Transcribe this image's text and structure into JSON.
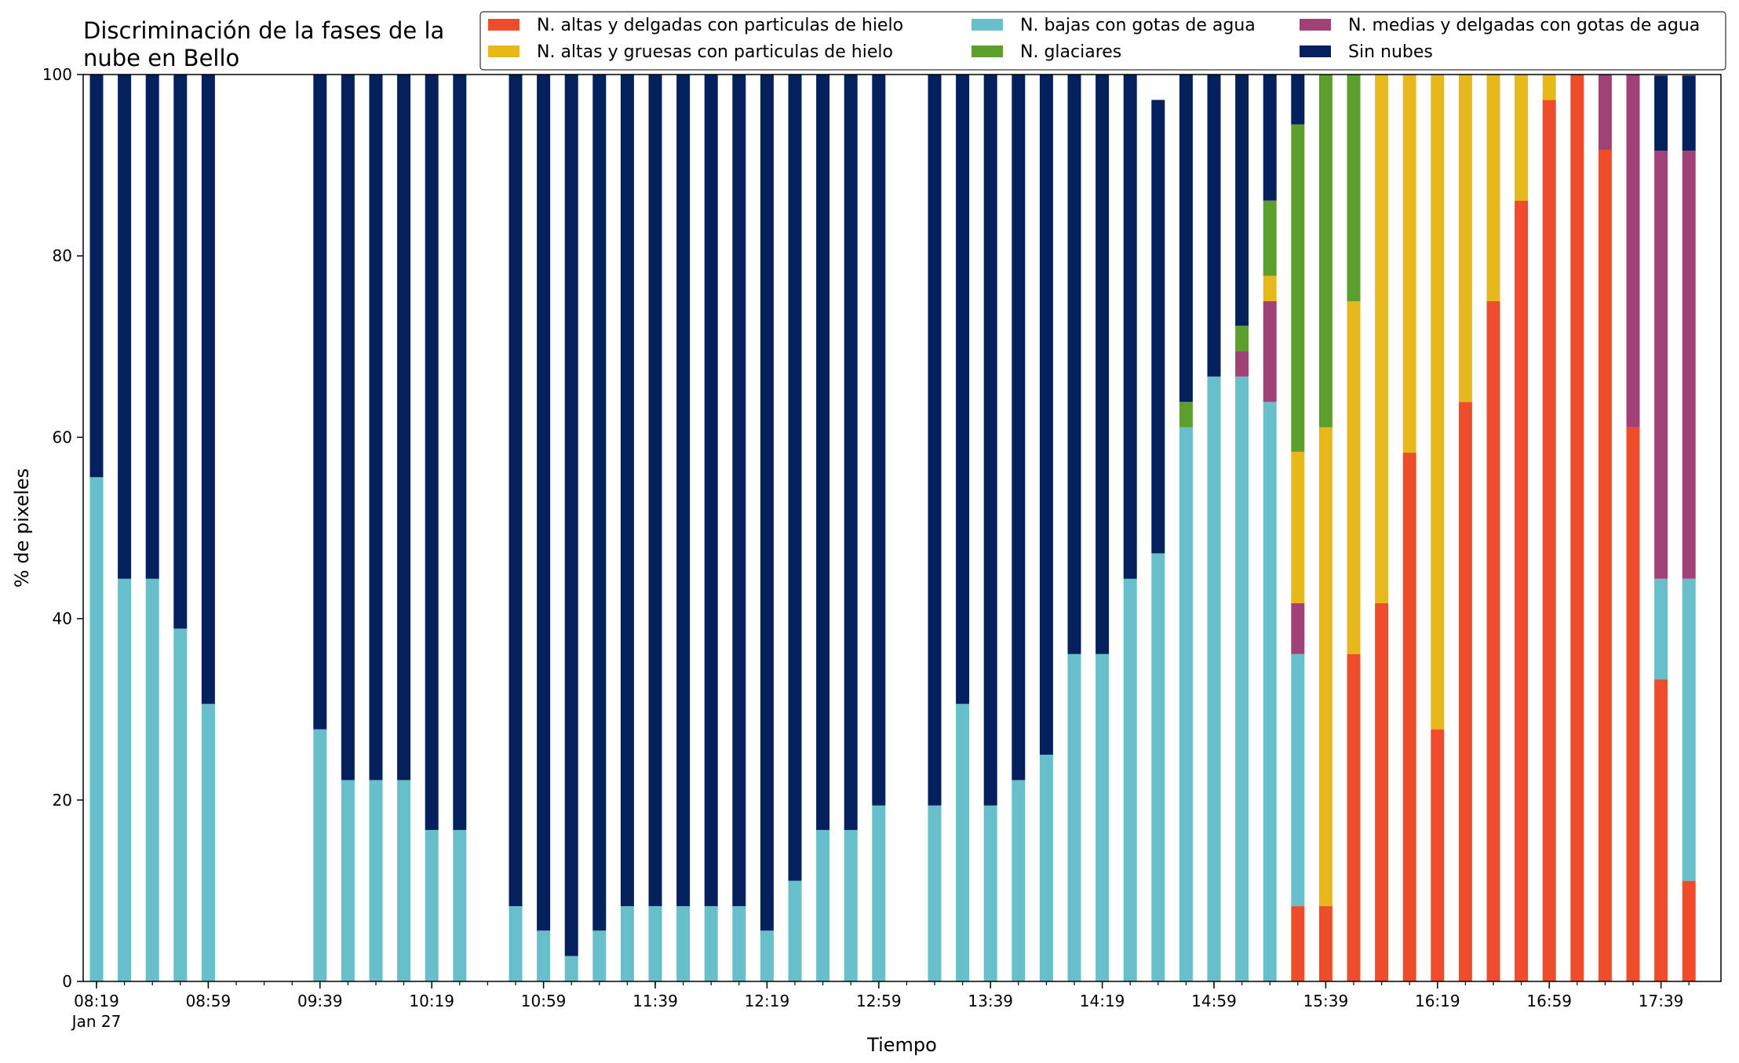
{
  "colors": {
    "ice_thin": "#ef4c2b",
    "ice_thick": "#e6b819",
    "water_low": "#66bfca",
    "glacier": "#5c9f2c",
    "water_mid": "#a04277",
    "clear": "#04205d"
  },
  "chart_data": {
    "type": "bar",
    "stacked": true,
    "title": "Discriminación de la fases de la\nnube en Bello",
    "xlabel": "Tiempo",
    "ylabel": "% de pixeles",
    "ylim": [
      0,
      100
    ],
    "yticks": [
      0,
      20,
      40,
      60,
      80,
      100
    ],
    "xticks": [
      {
        "slot": 0,
        "label": "08:19",
        "sublabel": "Jan 27"
      },
      {
        "slot": 4,
        "label": "08:59"
      },
      {
        "slot": 8,
        "label": "09:39"
      },
      {
        "slot": 12,
        "label": "10:19"
      },
      {
        "slot": 16,
        "label": "10:59"
      },
      {
        "slot": 20,
        "label": "11:39"
      },
      {
        "slot": 24,
        "label": "12:19"
      },
      {
        "slot": 28,
        "label": "12:59"
      },
      {
        "slot": 32,
        "label": "13:39"
      },
      {
        "slot": 36,
        "label": "14:19"
      },
      {
        "slot": 40,
        "label": "14:59"
      },
      {
        "slot": 44,
        "label": "15:39"
      },
      {
        "slot": 48,
        "label": "16:19"
      },
      {
        "slot": 52,
        "label": "16:59"
      },
      {
        "slot": 56,
        "label": "17:39"
      }
    ],
    "slot_minutes": 10,
    "num_slots": 58,
    "grid": false,
    "legend": {
      "placement": "top-right",
      "columns": 3
    },
    "categories": [
      "08:19",
      "08:29",
      "08:39",
      "08:49",
      "08:59",
      "09:09",
      "09:19",
      "09:29",
      "09:39",
      "09:49",
      "09:59",
      "10:09",
      "10:19",
      "10:29",
      "10:39",
      "10:49",
      "10:59",
      "11:09",
      "11:19",
      "11:29",
      "11:39",
      "11:49",
      "11:59",
      "12:09",
      "12:19",
      "12:29",
      "12:39",
      "12:49",
      "12:59",
      "13:09",
      "13:19",
      "13:29",
      "13:39",
      "13:49",
      "13:59",
      "14:09",
      "14:19",
      "14:29",
      "14:39",
      "14:49",
      "14:59",
      "15:09",
      "15:19",
      "15:29",
      "15:39",
      "15:49",
      "15:59",
      "16:09",
      "16:19",
      "16:29",
      "16:39",
      "16:49",
      "16:59",
      "17:09",
      "17:19",
      "17:29",
      "17:39",
      "17:49"
    ],
    "series": [
      {
        "name": "N. altas y delgadas con particulas de hielo",
        "color_key": "ice_thin",
        "values": [
          0,
          0,
          0,
          0,
          0,
          null,
          null,
          null,
          0,
          0,
          0,
          0,
          0,
          0,
          null,
          0,
          0,
          0,
          0,
          0,
          0,
          0,
          0,
          0,
          0,
          0,
          0,
          0,
          0,
          null,
          0,
          0,
          0,
          0,
          0,
          0,
          0,
          0,
          0,
          0,
          0,
          0,
          0,
          8.3,
          8.3,
          36.1,
          41.7,
          58.3,
          27.8,
          63.9,
          75,
          86.1,
          97.2,
          100,
          91.7,
          61.1,
          33.3,
          11.1
        ]
      },
      {
        "name": "N. bajas con gotas de agua",
        "color_key": "water_low",
        "values": [
          55.6,
          44.4,
          44.4,
          38.9,
          30.6,
          null,
          null,
          null,
          27.8,
          22.2,
          22.2,
          22.2,
          16.7,
          16.7,
          null,
          8.3,
          5.6,
          2.8,
          5.6,
          8.3,
          8.3,
          8.3,
          8.3,
          8.3,
          5.6,
          11.1,
          16.7,
          16.7,
          19.4,
          null,
          19.4,
          30.6,
          19.4,
          22.2,
          25,
          36.1,
          36.1,
          44.4,
          47.2,
          61.1,
          66.7,
          66.7,
          63.9,
          27.8,
          0,
          0,
          0,
          0,
          0,
          0,
          0,
          0,
          0,
          0,
          0,
          0,
          11.1,
          33.3
        ]
      },
      {
        "name": "N. medias y delgadas con gotas de agua",
        "color_key": "water_mid",
        "values": [
          0,
          0,
          0,
          0,
          0,
          null,
          null,
          null,
          0,
          0,
          0,
          0,
          0,
          0,
          null,
          0,
          0,
          0,
          0,
          0,
          0,
          0,
          0,
          0,
          0,
          0,
          0,
          0,
          0,
          null,
          0,
          0,
          0,
          0,
          0,
          0,
          0,
          0,
          0,
          0,
          0,
          2.8,
          11.1,
          5.6,
          0,
          0,
          0,
          0,
          0,
          0,
          0,
          0,
          0,
          0,
          8.3,
          38.9,
          47.2,
          47.2
        ]
      },
      {
        "name": "N. altas y gruesas con particulas de hielo",
        "color_key": "ice_thick",
        "values": [
          0,
          0,
          0,
          0,
          0,
          null,
          null,
          null,
          0,
          0,
          0,
          0,
          0,
          0,
          null,
          0,
          0,
          0,
          0,
          0,
          0,
          0,
          0,
          0,
          0,
          0,
          0,
          0,
          0,
          null,
          0,
          0,
          0,
          0,
          0,
          0,
          0,
          0,
          0,
          0,
          0,
          0,
          2.8,
          16.7,
          52.8,
          38.9,
          58.3,
          41.7,
          72.2,
          36.1,
          25,
          13.9,
          2.8,
          0,
          0,
          0,
          0,
          0
        ]
      },
      {
        "name": "N. glaciares",
        "color_key": "glacier",
        "values": [
          0,
          0,
          0,
          0,
          0,
          null,
          null,
          null,
          0,
          0,
          0,
          0,
          0,
          0,
          null,
          0,
          0,
          0,
          0,
          0,
          0,
          0,
          0,
          0,
          0,
          0,
          0,
          0,
          0,
          null,
          0,
          0,
          0,
          0,
          0,
          0,
          0,
          0,
          0,
          2.8,
          0,
          2.8,
          8.3,
          36.1,
          38.9,
          25,
          0,
          0,
          0,
          0,
          0,
          0,
          0,
          0,
          0,
          0,
          0,
          0
        ]
      },
      {
        "name": "Sin nubes",
        "color_key": "clear",
        "values": [
          44.4,
          55.6,
          55.6,
          61.1,
          69.4,
          null,
          null,
          null,
          72.2,
          77.8,
          77.8,
          77.8,
          83.3,
          83.3,
          null,
          91.7,
          94.4,
          97.2,
          94.4,
          91.7,
          91.7,
          91.7,
          91.7,
          91.7,
          94.4,
          88.9,
          83.3,
          83.3,
          80.6,
          null,
          80.6,
          69.4,
          80.6,
          77.8,
          75,
          63.9,
          63.9,
          55.6,
          50,
          38.9,
          33.3,
          27.8,
          13.9,
          5.6,
          0,
          0,
          0,
          0,
          0,
          0,
          0,
          0,
          0,
          0,
          0,
          0,
          8.3,
          8.3
        ]
      }
    ]
  }
}
